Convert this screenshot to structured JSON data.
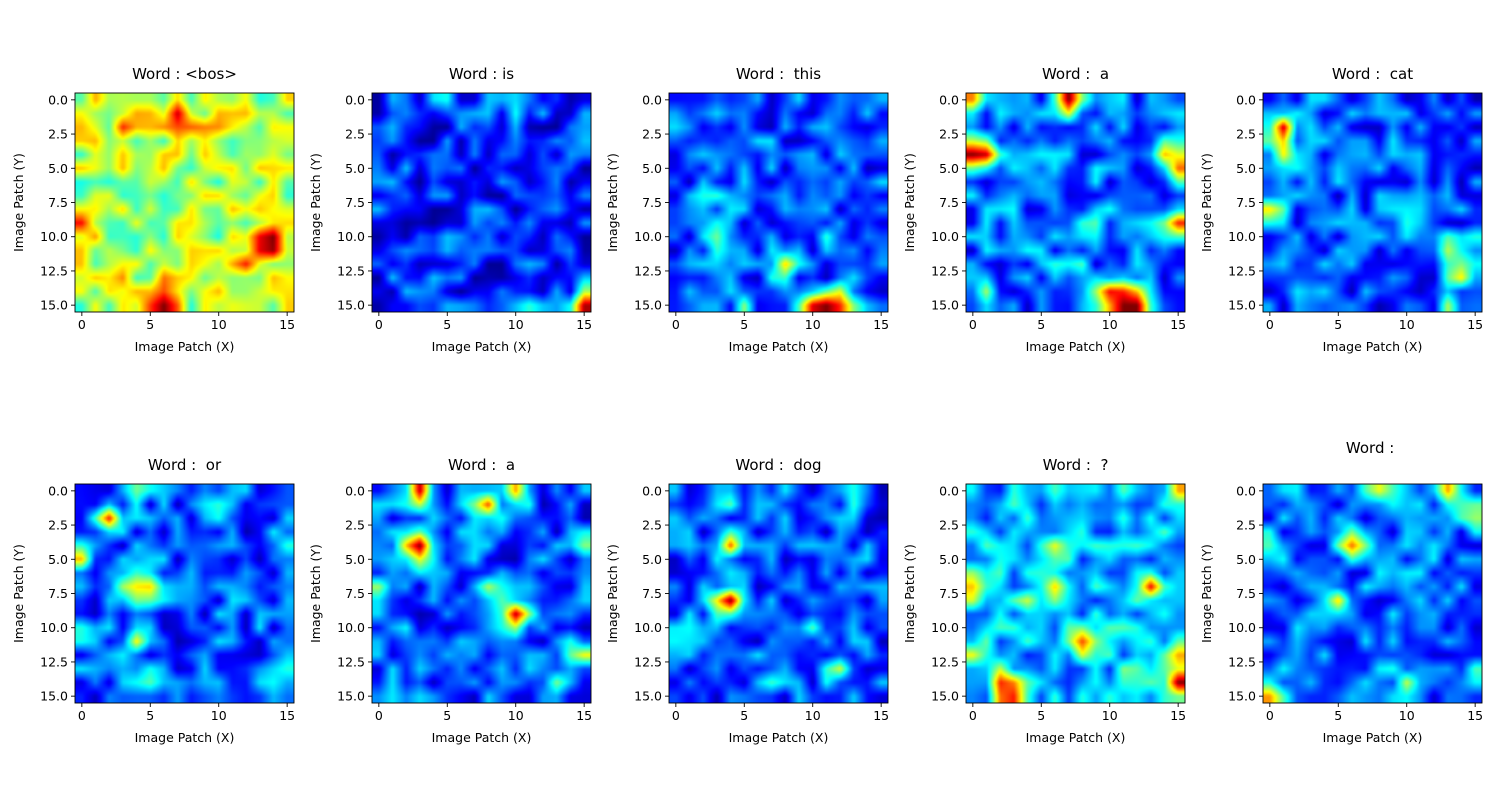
{
  "chart_data": [
    {
      "type": "heatmap",
      "title": "Word : <bos>",
      "xlabel": "Image Patch (X)",
      "ylabel": "Image Patch (Y)",
      "x_ticks": [
        "0",
        "5",
        "10",
        "15"
      ],
      "y_ticks": [
        "0.0",
        "2.5",
        "5.0",
        "7.5",
        "10.0",
        "12.5",
        "15.0"
      ],
      "xlim": [
        -0.5,
        15.5
      ],
      "ylim": [
        15.5,
        -0.5
      ],
      "grid_size": [
        16,
        16
      ],
      "colormap": "jet",
      "base_level": 0.55,
      "peaks": [
        [
          1,
          7,
          0.3
        ],
        [
          2,
          3,
          0.2
        ],
        [
          2,
          9,
          0.2
        ],
        [
          2,
          7,
          0.15
        ],
        [
          9,
          0,
          0.35
        ],
        [
          10,
          14,
          0.35
        ],
        [
          10,
          13,
          0.3
        ],
        [
          11,
          14,
          0.25
        ],
        [
          15,
          6,
          0.35
        ],
        [
          14,
          6,
          0.25
        ],
        [
          13,
          2,
          0.15
        ],
        [
          12,
          3,
          0.1
        ],
        [
          12,
          12,
          0.15
        ],
        [
          14,
          13,
          0.1
        ],
        [
          3,
          15,
          0.1
        ]
      ]
    },
    {
      "type": "heatmap",
      "title": "Word : is",
      "xlabel": "Image Patch (X)",
      "ylabel": "Image Patch (Y)",
      "x_ticks": [
        "0",
        "5",
        "10",
        "15"
      ],
      "y_ticks": [
        "0.0",
        "2.5",
        "5.0",
        "7.5",
        "10.0",
        "12.5",
        "15.0"
      ],
      "xlim": [
        -0.5,
        15.5
      ],
      "ylim": [
        15.5,
        -0.5
      ],
      "grid_size": [
        16,
        16
      ],
      "colormap": "jet",
      "base_level": 0.16,
      "peaks": [
        [
          15,
          15,
          0.7
        ],
        [
          15,
          10,
          0.3
        ],
        [
          0,
          5,
          0.2
        ],
        [
          1,
          2,
          0.15
        ],
        [
          1,
          10,
          0.2
        ],
        [
          3,
          15,
          0.2
        ],
        [
          14,
          2,
          0.1
        ]
      ]
    },
    {
      "type": "heatmap",
      "title": "Word :  this",
      "xlabel": "Image Patch (X)",
      "ylabel": "Image Patch (Y)",
      "x_ticks": [
        "0",
        "5",
        "10",
        "15"
      ],
      "y_ticks": [
        "0.0",
        "2.5",
        "5.0",
        "7.5",
        "10.0",
        "12.5",
        "15.0"
      ],
      "xlim": [
        -0.5,
        15.5
      ],
      "ylim": [
        15.5,
        -0.5
      ],
      "grid_size": [
        16,
        16
      ],
      "colormap": "jet",
      "base_level": 0.2,
      "peaks": [
        [
          15,
          11,
          0.75
        ],
        [
          15,
          12,
          0.5
        ],
        [
          15,
          10,
          0.4
        ],
        [
          12,
          8,
          0.55
        ],
        [
          10,
          3,
          0.25
        ],
        [
          7,
          3,
          0.2
        ],
        [
          1,
          2,
          0.2
        ],
        [
          3,
          15,
          0.25
        ],
        [
          5,
          10,
          0.15
        ],
        [
          12,
          1,
          0.15
        ],
        [
          15,
          5,
          0.2
        ],
        [
          10,
          11,
          0.15
        ]
      ]
    },
    {
      "type": "heatmap",
      "title": "Word :  a",
      "xlabel": "Image Patch (X)",
      "ylabel": "Image Patch (Y)",
      "x_ticks": [
        "0",
        "5",
        "10",
        "15"
      ],
      "y_ticks": [
        "0.0",
        "2.5",
        "5.0",
        "7.5",
        "10.0",
        "12.5",
        "15.0"
      ],
      "xlim": [
        -0.5,
        15.5
      ],
      "ylim": [
        15.5,
        -0.5
      ],
      "grid_size": [
        16,
        16
      ],
      "colormap": "jet",
      "base_level": 0.22,
      "peaks": [
        [
          0,
          7,
          0.7
        ],
        [
          0,
          0,
          0.55
        ],
        [
          4,
          0,
          0.7
        ],
        [
          4,
          1,
          0.5
        ],
        [
          15,
          12,
          0.75
        ],
        [
          15,
          11,
          0.6
        ],
        [
          14,
          10,
          0.6
        ],
        [
          9,
          15,
          0.5
        ],
        [
          5,
          15,
          0.4
        ],
        [
          4,
          14,
          0.3
        ],
        [
          12,
          7,
          0.3
        ],
        [
          9,
          9,
          0.2
        ],
        [
          10,
          4,
          0.2
        ],
        [
          14,
          1,
          0.2
        ]
      ]
    },
    {
      "type": "heatmap",
      "title": "Word :  cat",
      "xlabel": "Image Patch (X)",
      "ylabel": "Image Patch (Y)",
      "x_ticks": [
        "0",
        "5",
        "10",
        "15"
      ],
      "y_ticks": [
        "0.0",
        "2.5",
        "5.0",
        "7.5",
        "10.0",
        "12.5",
        "15.0"
      ],
      "xlim": [
        -0.5,
        15.5
      ],
      "ylim": [
        15.5,
        -0.5
      ],
      "grid_size": [
        16,
        16
      ],
      "colormap": "jet",
      "base_level": 0.2,
      "peaks": [
        [
          2,
          1,
          0.65
        ],
        [
          4,
          1,
          0.45
        ],
        [
          8,
          0,
          0.5
        ],
        [
          14,
          4,
          0.3
        ],
        [
          13,
          14,
          0.3
        ],
        [
          11,
          13,
          0.3
        ],
        [
          15,
          13,
          0.2
        ],
        [
          5,
          4,
          0.15
        ],
        [
          11,
          15,
          0.2
        ],
        [
          8,
          10,
          0.15
        ]
      ]
    },
    {
      "type": "heatmap",
      "title": "Word :  or",
      "xlabel": "Image Patch (X)",
      "ylabel": "Image Patch (Y)",
      "x_ticks": [
        "0",
        "5",
        "10",
        "15"
      ],
      "y_ticks": [
        "0.0",
        "2.5",
        "5.0",
        "7.5",
        "10.0",
        "12.5",
        "15.0"
      ],
      "xlim": [
        -0.5,
        15.5
      ],
      "ylim": [
        15.5,
        -0.5
      ],
      "grid_size": [
        16,
        16
      ],
      "colormap": "jet",
      "base_level": 0.2,
      "peaks": [
        [
          2,
          2,
          0.6
        ],
        [
          7,
          4,
          0.4
        ],
        [
          7,
          5,
          0.3
        ],
        [
          7,
          3,
          0.3
        ],
        [
          5,
          0,
          0.35
        ],
        [
          4,
          15,
          0.35
        ],
        [
          11,
          4,
          0.3
        ],
        [
          0,
          4,
          0.2
        ],
        [
          13,
          14,
          0.25
        ],
        [
          10,
          0,
          0.2
        ],
        [
          1,
          10,
          0.15
        ],
        [
          14,
          5,
          0.15
        ]
      ]
    },
    {
      "type": "heatmap",
      "title": "Word :  a",
      "xlabel": "Image Patch (X)",
      "ylabel": "Image Patch (Y)",
      "x_ticks": [
        "0",
        "5",
        "10",
        "15"
      ],
      "y_ticks": [
        "0.0",
        "2.5",
        "5.0",
        "7.5",
        "10.0",
        "12.5",
        "15.0"
      ],
      "xlim": [
        -0.5,
        15.5
      ],
      "ylim": [
        15.5,
        -0.5
      ],
      "grid_size": [
        16,
        16
      ],
      "colormap": "jet",
      "base_level": 0.2,
      "peaks": [
        [
          4,
          3,
          0.65
        ],
        [
          4,
          2,
          0.4
        ],
        [
          0,
          3,
          0.65
        ],
        [
          1,
          8,
          0.4
        ],
        [
          1,
          7,
          0.3
        ],
        [
          9,
          10,
          0.65
        ],
        [
          7,
          8,
          0.35
        ],
        [
          12,
          15,
          0.4
        ],
        [
          0,
          10,
          0.4
        ],
        [
          14,
          13,
          0.3
        ],
        [
          4,
          15,
          0.2
        ],
        [
          7,
          0,
          0.3
        ],
        [
          10,
          1,
          0.2
        ]
      ]
    },
    {
      "type": "heatmap",
      "title": "Word :  dog",
      "xlabel": "Image Patch (X)",
      "ylabel": "Image Patch (Y)",
      "x_ticks": [
        "0",
        "5",
        "10",
        "15"
      ],
      "y_ticks": [
        "0.0",
        "2.5",
        "5.0",
        "7.5",
        "10.0",
        "12.5",
        "15.0"
      ],
      "xlim": [
        -0.5,
        15.5
      ],
      "ylim": [
        15.5,
        -0.5
      ],
      "grid_size": [
        16,
        16
      ],
      "colormap": "jet",
      "base_level": 0.2,
      "peaks": [
        [
          8,
          4,
          0.6
        ],
        [
          4,
          4,
          0.5
        ],
        [
          8,
          3,
          0.3
        ],
        [
          13,
          12,
          0.3
        ],
        [
          0,
          13,
          0.2
        ],
        [
          1,
          4,
          0.15
        ],
        [
          14,
          7,
          0.2
        ],
        [
          11,
          1,
          0.15
        ],
        [
          10,
          10,
          0.15
        ]
      ]
    },
    {
      "type": "heatmap",
      "title": "Word :  ?",
      "xlabel": "Image Patch (X)",
      "ylabel": "Image Patch (Y)",
      "x_ticks": [
        "0",
        "5",
        "10",
        "15"
      ],
      "y_ticks": [
        "0.0",
        "2.5",
        "5.0",
        "7.5",
        "10.0",
        "12.5",
        "15.0"
      ],
      "xlim": [
        -0.5,
        15.5
      ],
      "ylim": [
        15.5,
        -0.5
      ],
      "grid_size": [
        16,
        16
      ],
      "colormap": "jet",
      "base_level": 0.3,
      "peaks": [
        [
          15,
          3,
          0.65
        ],
        [
          14,
          2,
          0.4
        ],
        [
          14,
          15,
          0.6
        ],
        [
          12,
          15,
          0.4
        ],
        [
          11,
          8,
          0.55
        ],
        [
          7,
          6,
          0.4
        ],
        [
          7,
          13,
          0.45
        ],
        [
          7,
          0,
          0.4
        ],
        [
          8,
          4,
          0.3
        ],
        [
          13,
          12,
          0.3
        ],
        [
          0,
          15,
          0.3
        ],
        [
          12,
          0,
          0.3
        ],
        [
          4,
          6,
          0.2
        ]
      ]
    },
    {
      "type": "heatmap",
      "title": "Word : ",
      "xlabel": "Image Patch (X)",
      "ylabel": "Image Patch (Y)",
      "x_ticks": [
        "0",
        "5",
        "10",
        "15"
      ],
      "y_ticks": [
        "0.0",
        "2.5",
        "5.0",
        "7.5",
        "10.0",
        "12.5",
        "15.0"
      ],
      "xlim": [
        -0.5,
        15.5
      ],
      "ylim": [
        15.5,
        -0.5
      ],
      "grid_size": [
        16,
        16
      ],
      "colormap": "jet",
      "base_level": 0.22,
      "peaks": [
        [
          4,
          6,
          0.6
        ],
        [
          8,
          5,
          0.45
        ],
        [
          0,
          8,
          0.4
        ],
        [
          0,
          13,
          0.4
        ],
        [
          2,
          15,
          0.3
        ],
        [
          15,
          0,
          0.35
        ],
        [
          4,
          0,
          0.3
        ],
        [
          14,
          10,
          0.25
        ],
        [
          14,
          15,
          0.3
        ],
        [
          10,
          3,
          0.2
        ],
        [
          15,
          5,
          0.15
        ]
      ]
    }
  ]
}
